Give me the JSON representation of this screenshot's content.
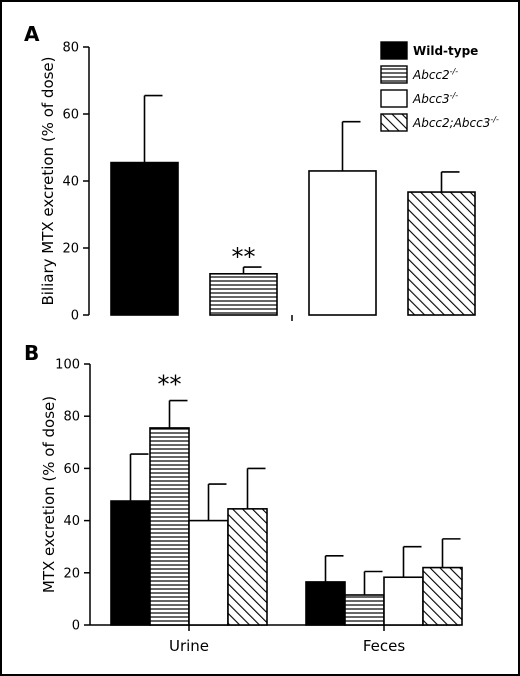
{
  "chart_data": [
    {
      "panel": "A",
      "type": "bar",
      "ylabel": "Biliary MTX excretion (% of dose)",
      "ylim": [
        0,
        80
      ],
      "yticks": [
        0,
        20,
        40,
        60,
        80
      ],
      "grid": false,
      "categories": [
        "Wild-type",
        "Abcc2-/-",
        "Abcc3-/-",
        "Abcc2;Abcc3-/-"
      ],
      "values": [
        45.5,
        12.3,
        43.0,
        36.7
      ],
      "errors": [
        20.0,
        2.0,
        14.7,
        6.0
      ],
      "annotations": [
        {
          "category": "Abcc2-/-",
          "text": "**"
        }
      ]
    },
    {
      "panel": "B",
      "type": "bar",
      "ylabel": "MTX excretion (% of dose)",
      "ylim": [
        0,
        100
      ],
      "yticks": [
        0,
        20,
        40,
        60,
        80,
        100
      ],
      "grid": false,
      "categories": [
        "Urine",
        "Feces"
      ],
      "series": [
        {
          "name": "Wild-type",
          "values": [
            47.5,
            16.5
          ],
          "errors": [
            18.0,
            10.0
          ]
        },
        {
          "name": "Abcc2-/-",
          "values": [
            75.5,
            11.5
          ],
          "errors": [
            10.5,
            9.0
          ]
        },
        {
          "name": "Abcc3-/-",
          "values": [
            40.0,
            18.3
          ],
          "errors": [
            14.0,
            11.7
          ]
        },
        {
          "name": "Abcc2;Abcc3-/-",
          "values": [
            44.5,
            22.0
          ],
          "errors": [
            15.5,
            11.0
          ]
        }
      ],
      "annotations": [
        {
          "category": "Urine",
          "series": "Abcc2-/-",
          "text": "**"
        }
      ]
    }
  ],
  "legend": {
    "placement": "top-right",
    "items": [
      {
        "prefix": "Wild-type",
        "sup": "",
        "fill": "solid",
        "style": "bold"
      },
      {
        "prefix": "Abcc2",
        "sup": "-/-",
        "fill": "horizontal-lines",
        "style": "italic"
      },
      {
        "prefix": "Abcc3",
        "sup": "-/-",
        "fill": "white",
        "style": "italic"
      },
      {
        "prefix": "Abcc2;Abcc3",
        "sup": "-/-",
        "fill": "diagonal-hatch",
        "style": "italic"
      }
    ]
  },
  "colors": {
    "bar_fill": "#000000",
    "background": "#ffffff",
    "border": "#000000"
  }
}
